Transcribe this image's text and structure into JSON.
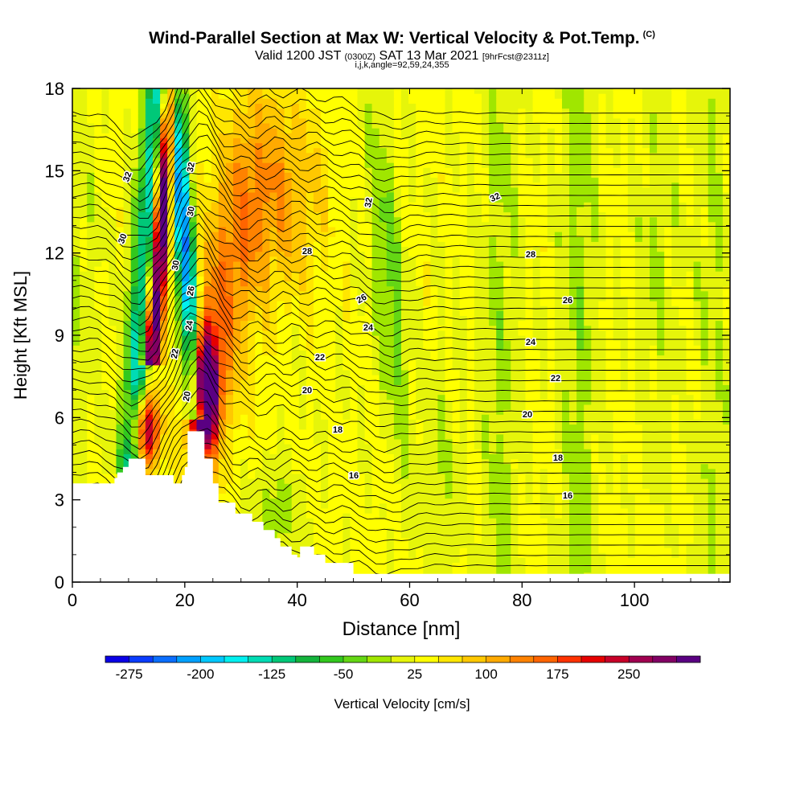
{
  "header": {
    "title": "Wind-Parallel Section at Max W: Vertical Velocity & Pot.Temp.",
    "copyright": "(C)",
    "subtitle_main": "Valid 1200 JST",
    "subtitle_utc": "(0300Z)",
    "subtitle_date": "SAT 13 Mar 2021",
    "subtitle_fcst": "[9hrFcst@2311z]",
    "subtitle_ijk": "i,j,k,angle=92,59,24,355"
  },
  "chart_data": {
    "type": "heatmap",
    "xlabel": "Distance [nm]",
    "ylabel": "Height [Kft MSL]",
    "xlim": [
      0,
      117
    ],
    "ylim": [
      0,
      18
    ],
    "x_ticks": [
      0,
      20,
      40,
      60,
      80,
      100
    ],
    "y_ticks": [
      0,
      3,
      6,
      9,
      12,
      15,
      18
    ],
    "colorbar": {
      "label": "Vertical Velocity [cm/s]",
      "tick_labels": [
        -275,
        -200,
        -125,
        -50,
        25,
        100,
        175,
        250
      ],
      "min": -300,
      "max": 325,
      "step": 25,
      "colors": [
        "#0a00e6",
        "#0a3cff",
        "#0a6eff",
        "#00a0ff",
        "#00c8ff",
        "#00f0f0",
        "#00dcb4",
        "#00c878",
        "#14b43c",
        "#32c81e",
        "#64d714",
        "#a0e600",
        "#e6f50a",
        "#ffff00",
        "#ffe600",
        "#ffc800",
        "#ffaa00",
        "#ff8200",
        "#ff6400",
        "#ff3200",
        "#e60000",
        "#c80028",
        "#a00050",
        "#820064",
        "#5a0082"
      ]
    },
    "terrain_kft": [
      [
        0,
        3.6
      ],
      [
        3,
        3.6
      ],
      [
        7.5,
        3.6
      ],
      [
        7.5,
        3.8
      ],
      [
        8,
        3.8
      ],
      [
        8,
        4.0
      ],
      [
        9,
        4.0
      ],
      [
        9,
        4.2
      ],
      [
        10,
        4.2
      ],
      [
        10,
        4.5
      ],
      [
        13,
        4.5
      ],
      [
        13,
        3.9
      ],
      [
        18,
        3.9
      ],
      [
        18,
        3.6
      ],
      [
        19.5,
        3.6
      ],
      [
        19.5,
        3.9
      ],
      [
        20,
        3.9
      ],
      [
        20,
        4.2
      ],
      [
        20.5,
        4.2
      ],
      [
        20.5,
        5.5
      ],
      [
        23.5,
        5.5
      ],
      [
        23.5,
        4.5
      ],
      [
        25,
        4.5
      ],
      [
        25,
        3.6
      ],
      [
        26,
        3.6
      ],
      [
        26,
        2.9
      ],
      [
        29,
        2.9
      ],
      [
        29,
        2.5
      ],
      [
        32,
        2.5
      ],
      [
        32,
        2.2
      ],
      [
        34,
        2.2
      ],
      [
        34,
        1.9
      ],
      [
        36,
        1.9
      ],
      [
        36,
        1.6
      ],
      [
        37,
        1.6
      ],
      [
        37,
        1.3
      ],
      [
        39,
        1.3
      ],
      [
        39,
        1.0
      ],
      [
        40,
        1.0
      ],
      [
        40,
        0.9
      ],
      [
        40.5,
        0.9
      ],
      [
        40.5,
        1.3
      ],
      [
        43,
        1.3
      ],
      [
        43,
        1.0
      ],
      [
        45,
        1.0
      ],
      [
        45,
        0.7
      ],
      [
        50,
        0.7
      ],
      [
        50,
        0.3
      ],
      [
        117,
        0.3
      ]
    ],
    "theta_label_values": [
      "16",
      "16",
      "18",
      "18",
      "20",
      "20",
      "20",
      "22",
      "22",
      "22",
      "24",
      "24",
      "24",
      "26",
      "26",
      "26",
      "28",
      "28",
      "30",
      "30",
      "30",
      "32",
      "32",
      "32",
      "32"
    ],
    "series": [
      {
        "name": "Pot.Temp. (C)",
        "type": "contour_labels"
      }
    ]
  }
}
